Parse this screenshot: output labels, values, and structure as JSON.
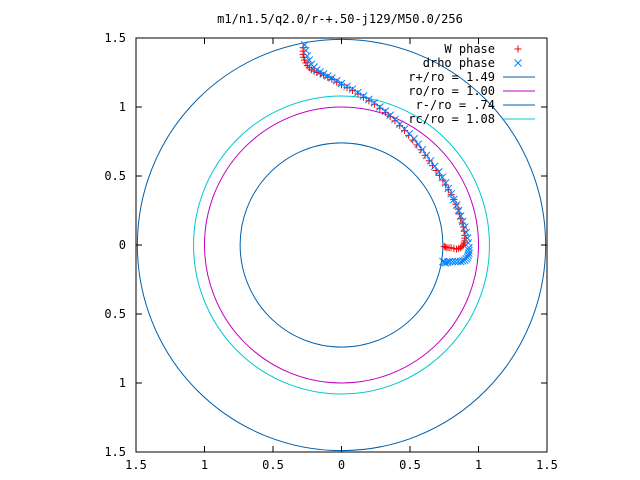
{
  "chart_data": {
    "type": "scatter",
    "title": "m1/n1.5/q2.0/r-+.50-j129/M50.0/256",
    "xlabel": "",
    "ylabel": "",
    "xlim": [
      -1.5,
      1.5
    ],
    "ylim": [
      -1.5,
      1.5
    ],
    "xticks": [
      -1.5,
      -1,
      -0.5,
      0,
      0.5,
      1,
      1.5
    ],
    "xtick_labels": [
      "1.5",
      "1",
      "0.5",
      "0",
      "0.5",
      "1",
      "1.5"
    ],
    "yticks": [
      1.5,
      1,
      0.5,
      0,
      -0.5,
      -1,
      -1.5
    ],
    "ytick_labels": [
      "1.5",
      "1",
      "0.5",
      "0",
      "0.5",
      "1",
      "1.5"
    ],
    "grid": false,
    "legend_position": "top-right",
    "series": [
      {
        "name": "W phase",
        "kind": "points",
        "marker": "+",
        "color": "#ff0000",
        "x": [
          -0.28,
          -0.28,
          -0.27,
          -0.25,
          -0.22,
          -0.18,
          -0.13,
          -0.07,
          0.0,
          0.08,
          0.16,
          0.24,
          0.32,
          0.39,
          0.46,
          0.52,
          0.58,
          0.64,
          0.69,
          0.74,
          0.78,
          0.82,
          0.85,
          0.87,
          0.89,
          0.9,
          0.9,
          0.89,
          0.87,
          0.84,
          0.8,
          0.77,
          0.75
        ],
        "y": [
          1.43,
          1.38,
          1.34,
          1.3,
          1.27,
          1.25,
          1.23,
          1.2,
          1.16,
          1.12,
          1.07,
          1.02,
          0.96,
          0.9,
          0.83,
          0.76,
          0.69,
          0.61,
          0.54,
          0.47,
          0.4,
          0.33,
          0.26,
          0.19,
          0.13,
          0.07,
          0.03,
          0.0,
          -0.02,
          -0.03,
          -0.02,
          -0.02,
          -0.01
        ]
      },
      {
        "name": "drho phase",
        "kind": "points",
        "marker": "x",
        "color": "#0080ff",
        "x": [
          -0.27,
          -0.25,
          -0.22,
          -0.18,
          -0.13,
          -0.07,
          0.0,
          0.08,
          0.16,
          0.24,
          0.32,
          0.39,
          0.46,
          0.53,
          0.59,
          0.65,
          0.71,
          0.76,
          0.8,
          0.84,
          0.87,
          0.9,
          0.92,
          0.93,
          0.93,
          0.92,
          0.9,
          0.87,
          0.83,
          0.79,
          0.76,
          0.74
        ],
        "y": [
          1.45,
          1.37,
          1.31,
          1.27,
          1.24,
          1.21,
          1.17,
          1.13,
          1.08,
          1.03,
          0.97,
          0.91,
          0.84,
          0.77,
          0.69,
          0.61,
          0.53,
          0.45,
          0.37,
          0.29,
          0.21,
          0.13,
          0.05,
          -0.02,
          -0.06,
          -0.09,
          -0.11,
          -0.12,
          -0.12,
          -0.12,
          -0.13,
          -0.12
        ]
      },
      {
        "name": "r+/ro = 1.49",
        "kind": "circle",
        "radius": 1.49,
        "color": "#0060ad"
      },
      {
        "name": "ro/ro = 1.00",
        "kind": "circle",
        "radius": 1.0,
        "color": "#c000c0"
      },
      {
        "name": "r-/ro = .74",
        "kind": "circle",
        "radius": 0.74,
        "color": "#0060ad"
      },
      {
        "name": "rc/ro = 1.08",
        "kind": "circle",
        "radius": 1.08,
        "color": "#00c8d0"
      }
    ]
  }
}
